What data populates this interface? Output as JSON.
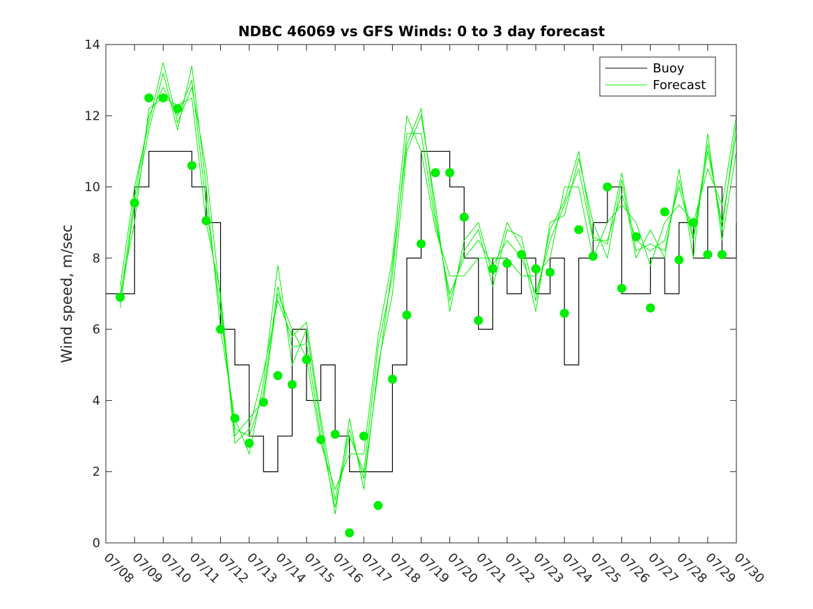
{
  "chart_data": {
    "type": "line",
    "title": "NDBC 46069 vs GFS Winds: 0 to 3 day forecast",
    "ylabel": "Wind speed, m/sec",
    "xlabel": "",
    "ylim": [
      0,
      14
    ],
    "yticks": [
      "0",
      "2",
      "4",
      "6",
      "8",
      "10",
      "12",
      "14"
    ],
    "xlim_days": [
      0,
      22
    ],
    "xticks": [
      "07/08",
      "07/09",
      "07/10",
      "07/11",
      "07/12",
      "07/13",
      "07/14",
      "07/15",
      "07/16",
      "07/17",
      "07/18",
      "07/19",
      "07/20",
      "07/21",
      "07/22",
      "07/23",
      "07/24",
      "07/25",
      "07/26",
      "07/27",
      "07/28",
      "07/29",
      "07/30"
    ],
    "legend": {
      "placement": "top-right",
      "entries": [
        {
          "label": "Buoy",
          "color": "#000000"
        },
        {
          "label": "Forecast",
          "color": "#00ee00"
        }
      ]
    },
    "colors": {
      "buoy": "#000000",
      "forecast": "#00ee00",
      "points": "#00ee00"
    },
    "series": [
      {
        "name": "Buoy",
        "x": [
          0,
          0.5,
          1,
          1.5,
          2,
          2.5,
          3,
          3.5,
          4,
          4.5,
          5,
          5.5,
          6,
          6.5,
          7,
          7.5,
          8,
          8.5,
          9,
          9.5,
          10,
          10.5,
          11,
          11.5,
          12,
          12.5,
          13,
          13.5,
          14,
          14.5,
          15,
          15.5,
          16,
          16.5,
          17,
          17.5,
          18,
          18.5,
          19,
          19.5,
          20,
          20.5,
          21,
          21.5,
          22
        ],
        "y": [
          7,
          7,
          10,
          11,
          11,
          11,
          10,
          9,
          6,
          5,
          3,
          2,
          3,
          6,
          4,
          5,
          3,
          2,
          2,
          2,
          5,
          8,
          11,
          11,
          10,
          8,
          6,
          8,
          7,
          8,
          7,
          8,
          5,
          8,
          9,
          10,
          7,
          7,
          8,
          7,
          9,
          8,
          10,
          8,
          9
        ]
      },
      {
        "name": "Forecast",
        "x": [
          0.5,
          1,
          1.5,
          2,
          2.5,
          3,
          3.5,
          4,
          4.5,
          5,
          5.5,
          6,
          6.5,
          7,
          7.5,
          8,
          8.5,
          9,
          9.5,
          10,
          10.5,
          11,
          11.5,
          12,
          12.5,
          13,
          13.5,
          14,
          14.5,
          15,
          15.5,
          16,
          16.5,
          17,
          17.5,
          18,
          18.5,
          19,
          19.5,
          20,
          20.5,
          21,
          21.5,
          22
        ],
        "y": [
          6.8,
          9.7,
          12.0,
          12.8,
          12.0,
          13.0,
          9.5,
          6.5,
          3.2,
          3.0,
          4.2,
          7.2,
          5.5,
          5.6,
          3.0,
          1.0,
          3.0,
          2.0,
          5.5,
          7.5,
          11.5,
          11.5,
          9.0,
          7.0,
          8.0,
          8.5,
          7.8,
          8.5,
          8.0,
          7.0,
          8.5,
          9.5,
          10.5,
          8.5,
          8.5,
          9.8,
          8.5,
          8.2,
          8.5,
          10.0,
          8.5,
          11.0,
          9.0,
          11.5
        ]
      },
      {
        "name": "Forecast",
        "x": [
          0.5,
          1,
          1.5,
          2,
          2.5,
          3,
          3.5,
          4,
          4.5,
          5,
          5.5,
          6,
          6.5,
          7,
          7.5,
          8,
          8.5,
          9,
          9.5,
          10,
          10.5,
          11,
          11.5,
          12,
          12.5,
          13,
          13.5,
          14,
          14.5,
          15,
          15.5,
          16,
          16.5,
          17,
          17.5,
          18,
          18.5,
          19,
          19.5,
          20,
          20.5,
          21,
          21.5,
          22
        ],
        "y": [
          6.6,
          9.5,
          11.6,
          13.2,
          11.6,
          13.4,
          10.0,
          6.0,
          3.5,
          2.5,
          4.5,
          7.8,
          5.0,
          6.0,
          3.3,
          0.8,
          3.5,
          1.5,
          5.0,
          7.0,
          11.0,
          12.0,
          9.5,
          6.5,
          8.5,
          9.0,
          7.5,
          9.0,
          8.3,
          6.5,
          9.0,
          9.2,
          10.8,
          9.0,
          8.0,
          10.2,
          8.0,
          8.8,
          8.0,
          10.5,
          8.0,
          11.5,
          8.5,
          11.0
        ]
      },
      {
        "name": "Forecast",
        "x": [
          0.5,
          1,
          1.5,
          2,
          2.5,
          3,
          3.5,
          4,
          4.5,
          5,
          5.5,
          6,
          6.5,
          7,
          7.5,
          8,
          8.5,
          9,
          9.5,
          10,
          10.5,
          11,
          11.5,
          12,
          12.5,
          13,
          13.5,
          14,
          14.5,
          15,
          15.5,
          16,
          16.5,
          17,
          17.5,
          18,
          18.5,
          19,
          19.5,
          20,
          20.5,
          21,
          21.5,
          22
        ],
        "y": [
          7.0,
          9.0,
          12.2,
          12.5,
          12.3,
          12.5,
          9.0,
          7.0,
          3.0,
          3.5,
          4.0,
          7.0,
          6.0,
          5.2,
          2.8,
          1.5,
          2.5,
          2.5,
          5.8,
          8.0,
          12.0,
          11.0,
          8.8,
          7.5,
          7.5,
          8.0,
          8.0,
          8.0,
          7.5,
          7.5,
          8.0,
          10.0,
          10.0,
          8.0,
          9.0,
          9.5,
          9.0,
          7.8,
          9.0,
          9.5,
          9.0,
          10.5,
          9.5,
          12.0
        ]
      },
      {
        "name": "Forecast",
        "x": [
          0.5,
          1,
          1.5,
          2,
          2.5,
          3,
          3.5,
          4,
          4.5,
          5,
          5.5,
          6,
          6.5,
          7,
          7.5,
          8,
          8.5,
          9,
          9.5,
          10,
          10.5,
          11,
          11.5,
          12,
          12.5,
          13,
          13.5,
          14,
          14.5,
          15,
          15.5,
          16,
          16.5,
          17,
          17.5,
          18,
          18.5,
          19,
          19.5,
          20,
          20.5,
          21,
          21.5,
          22
        ],
        "y": [
          7.2,
          10.0,
          11.8,
          13.5,
          11.8,
          12.8,
          10.5,
          6.8,
          2.8,
          3.2,
          4.8,
          6.8,
          5.8,
          6.2,
          3.5,
          1.2,
          3.2,
          1.8,
          4.8,
          7.8,
          11.2,
          12.2,
          9.2,
          6.8,
          8.2,
          8.8,
          7.2,
          8.8,
          8.6,
          6.8,
          8.8,
          9.6,
          11.0,
          8.6,
          8.4,
          10.4,
          8.2,
          8.4,
          8.2,
          10.2,
          8.6,
          11.2,
          8.8,
          11.8
        ]
      },
      {
        "name": "Forecast points",
        "x": [
          0.5,
          1,
          1.5,
          2,
          2.5,
          3,
          3.5,
          4,
          4.5,
          5,
          5.5,
          6,
          6.5,
          7,
          7.5,
          8,
          8.5,
          9,
          9.5,
          10,
          10.5,
          11,
          11.5,
          12,
          12.5,
          13,
          13.5,
          14,
          14.5,
          15,
          15.5,
          16,
          16.5,
          17,
          17.5,
          18,
          18.5,
          19,
          19.5,
          20,
          20.5,
          21,
          21.5
        ],
        "y": [
          6.9,
          9.55,
          12.5,
          12.5,
          12.2,
          10.6,
          9.05,
          6.0,
          3.5,
          2.8,
          3.95,
          4.7,
          4.45,
          5.15,
          2.9,
          3.05,
          0.28,
          3.0,
          1.05,
          4.6,
          6.4,
          8.4,
          10.4,
          10.4,
          9.15,
          6.25,
          7.7,
          7.85,
          8.1,
          7.7,
          7.6,
          6.45,
          8.8,
          8.05,
          10.0,
          7.15,
          8.6,
          6.6,
          9.3,
          7.95,
          9.0,
          8.1,
          8.1
        ]
      }
    ]
  }
}
